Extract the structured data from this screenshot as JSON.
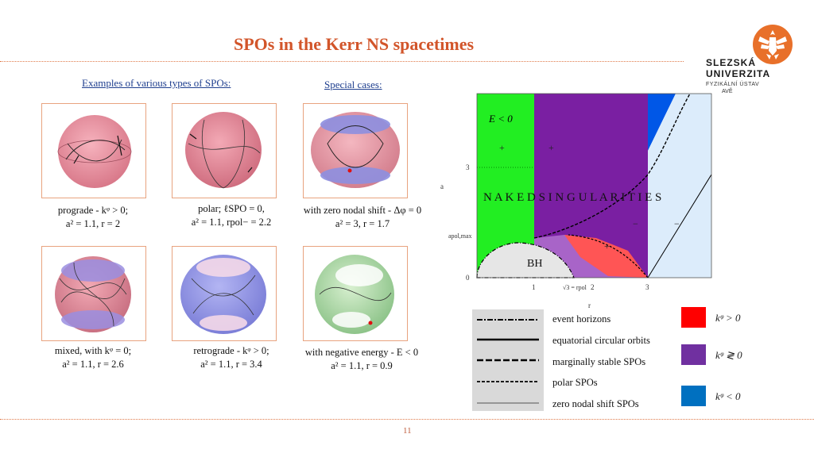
{
  "title": "SPOs in the Kerr NS spacetimes",
  "logo": {
    "line1": "SLEZSKÁ",
    "line2": "UNIVERZITA",
    "line3": "FYZIKÁLNÍ ÚSTAV",
    "line4": "AVĚ",
    "accent": "#e8702a"
  },
  "left_subhead": "Examples of various types of SPOs:",
  "right_subhead": "Special cases:",
  "captions": {
    "c1_line1": "prograde - kᵠ > 0;",
    "c1_line2": "a² = 1.1, r = 2",
    "c2_line1": "polar; ℓSPO = 0,",
    "c2_line2": "a² = 1.1, rpol− = 2.2",
    "c3_line1": "with zero nodal shift - Δφ = 0",
    "c3_line2": "a² = 3, r = 1.7",
    "c4_line1": "mixed, with kᵠ = 0;",
    "c4_line2": "a² = 1.1, r = 2.6",
    "c5_line1": "retrograde - kᵠ > 0;",
    "c5_line2": "a² = 1.1, r = 3.4",
    "c6_line1": "with negative energy - E < 0",
    "c6_line2": "a² = 1.1, r = 0.9"
  },
  "diagram": {
    "e_label": "E < 0",
    "naked": "N A K E D    S I N G U L A R I T I E S",
    "bh": "BH",
    "y_axis": "a",
    "y_tick_3": "3",
    "y_tick_apol": "apol,max",
    "y_tick_0": "0",
    "x_tick_1": "1",
    "x_tick_sqrt3": "√3 = rpol",
    "x_tick_2": "2",
    "x_tick_3": "3",
    "x_axis": "r",
    "plus": "+",
    "minus": "−"
  },
  "legend": {
    "items": [
      "event horizons",
      "equatorial circular orbits",
      "marginally stable SPOs",
      "polar SPOs",
      "zero nodal shift SPOs"
    ]
  },
  "color_legend": [
    {
      "color": "#ff0000",
      "label": "kᵠ > 0"
    },
    {
      "color": "#7030a0",
      "label": "kᵠ ≷ 0"
    },
    {
      "color": "#0070c0",
      "label": "kᵠ < 0"
    }
  ],
  "page_number": "11"
}
